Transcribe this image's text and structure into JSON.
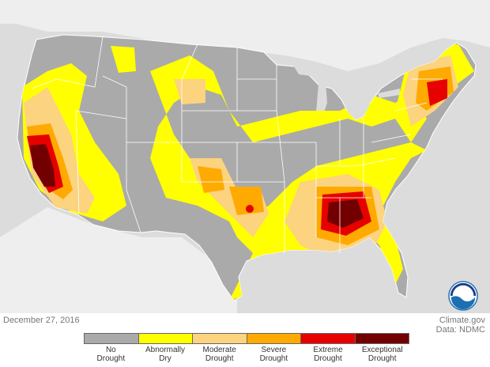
{
  "map": {
    "date": "December 27, 2016",
    "credit_line1": "Climate.gov",
    "credit_line2": "Data: NDMC",
    "logo_text": "NOAA",
    "background_color": "#dcdcdc",
    "land_color": "#aaaaaa",
    "border_color": "#ffffff"
  },
  "legend": {
    "categories": [
      {
        "label": "No\nDrought",
        "color": "#aaaaaa"
      },
      {
        "label": "Abnormally\nDry",
        "color": "#ffff00"
      },
      {
        "label": "Moderate\nDrought",
        "color": "#fcd37f"
      },
      {
        "label": "Severe\nDrought",
        "color": "#ffaa00"
      },
      {
        "label": "Extreme\nDrought",
        "color": "#e60000"
      },
      {
        "label": "Exceptional\nDrought",
        "color": "#730000"
      }
    ]
  }
}
